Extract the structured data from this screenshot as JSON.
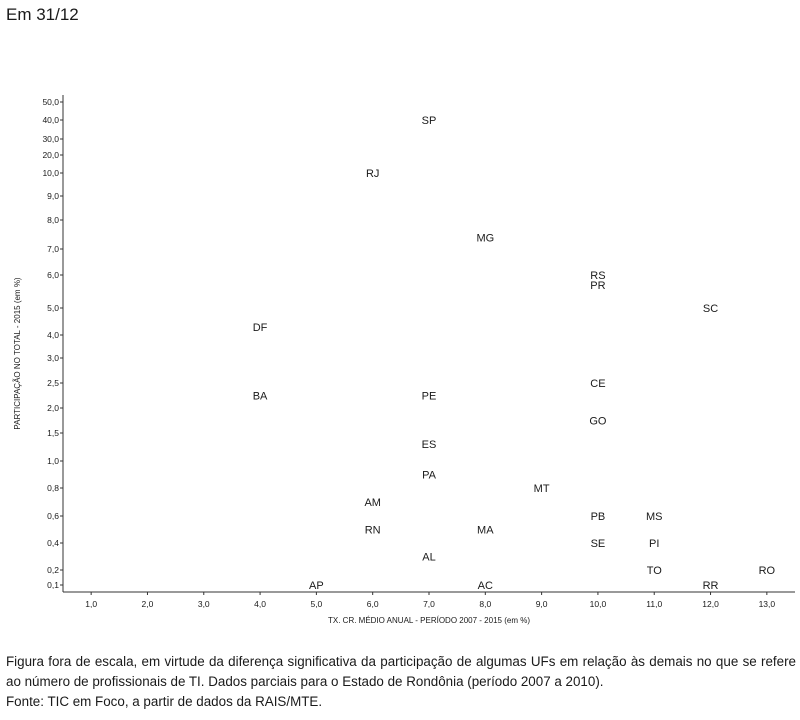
{
  "heading": "Em 31/12",
  "caption": {
    "line1": "Figura fora de escala, em virtude da diferença significativa da participação de algumas UFs em relação às demais no que se refere ao número de profissionais de TI. Dados parciais para o Estado de Rondônia (período 2007 a 2010).",
    "line2": "Fonte: TIC em Foco, a partir de dados da RAIS/MTE."
  },
  "chart_data": {
    "type": "scatter",
    "title": "",
    "xlabel": "TX. CR. MÉDIO ANUAL - PERÍODO 2007 - 2015 (em %)",
    "ylabel": "PARTICIPAÇÃO NO TOTAL - 2015 (em %)",
    "x_ticks": [
      "1,0",
      "2,0",
      "3,0",
      "4,0",
      "5,0",
      "6,0",
      "7,0",
      "8,0",
      "9,0",
      "10,0",
      "11,0",
      "12,0",
      "13,0"
    ],
    "x_values": [
      1,
      2,
      3,
      4,
      5,
      6,
      7,
      8,
      9,
      10,
      11,
      12,
      13
    ],
    "xlim": [
      0.5,
      13.5
    ],
    "y_ticks": [
      "0,1",
      "0,2",
      "0,4",
      "0,6",
      "0,8",
      "1,0",
      "1,5",
      "2,0",
      "2,5",
      "3,0",
      "4,0",
      "5,0",
      "6,0",
      "7,0",
      "8,0",
      "9,0",
      "10,0",
      "20,0",
      "30,0",
      "40,0",
      "50,0"
    ],
    "y_scale": "non-uniform (figure not to scale)",
    "points": [
      {
        "label": "SP",
        "x": 7.0,
        "y": 40.0
      },
      {
        "label": "RJ",
        "x": 6.0,
        "y": 10.0
      },
      {
        "label": "MG",
        "x": 8.0,
        "y": 7.4
      },
      {
        "label": "RS",
        "x": 10.0,
        "y": 6.0
      },
      {
        "label": "PR",
        "x": 10.0,
        "y": 5.7
      },
      {
        "label": "SC",
        "x": 12.0,
        "y": 5.0
      },
      {
        "label": "DF",
        "x": 4.0,
        "y": 4.3
      },
      {
        "label": "CE",
        "x": 10.0,
        "y": 2.5
      },
      {
        "label": "BA",
        "x": 4.0,
        "y": 2.25
      },
      {
        "label": "PE",
        "x": 7.0,
        "y": 2.25
      },
      {
        "label": "GO",
        "x": 10.0,
        "y": 1.75
      },
      {
        "label": "ES",
        "x": 7.0,
        "y": 1.3
      },
      {
        "label": "PA",
        "x": 7.0,
        "y": 0.9
      },
      {
        "label": "MT",
        "x": 9.0,
        "y": 0.8
      },
      {
        "label": "AM",
        "x": 6.0,
        "y": 0.7
      },
      {
        "label": "PB",
        "x": 10.0,
        "y": 0.6
      },
      {
        "label": "MS",
        "x": 11.0,
        "y": 0.6
      },
      {
        "label": "RN",
        "x": 6.0,
        "y": 0.5
      },
      {
        "label": "MA",
        "x": 8.0,
        "y": 0.5
      },
      {
        "label": "SE",
        "x": 10.0,
        "y": 0.4
      },
      {
        "label": "PI",
        "x": 11.0,
        "y": 0.4
      },
      {
        "label": "AL",
        "x": 7.0,
        "y": 0.3
      },
      {
        "label": "TO",
        "x": 11.0,
        "y": 0.2
      },
      {
        "label": "RO",
        "x": 13.0,
        "y": 0.2
      },
      {
        "label": "AP",
        "x": 5.0,
        "y": 0.1
      },
      {
        "label": "AC",
        "x": 8.0,
        "y": 0.1
      },
      {
        "label": "RR",
        "x": 12.0,
        "y": 0.1
      }
    ],
    "grid": false,
    "legend": "none"
  }
}
